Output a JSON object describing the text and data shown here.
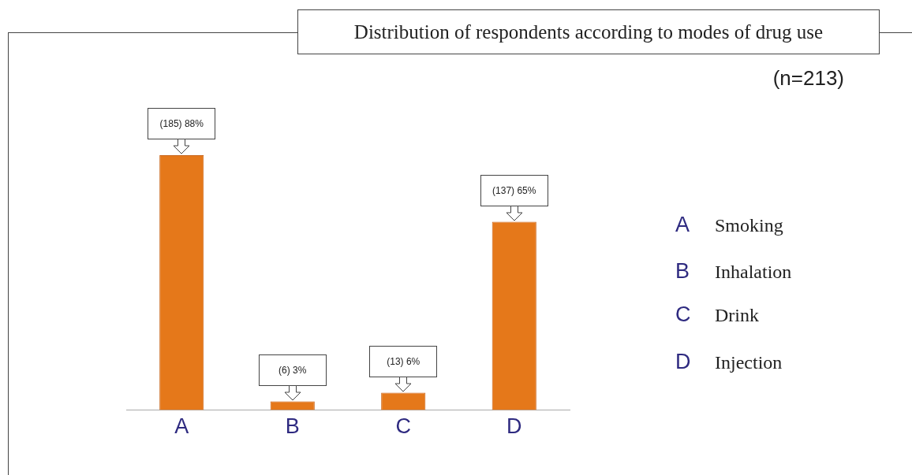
{
  "chart_data": {
    "type": "bar",
    "title": "Distribution of respondents according to modes of drug use",
    "subtitle": "(n=213)",
    "categories": [
      "A",
      "B",
      "C",
      "D"
    ],
    "values": [
      88,
      3,
      6,
      65
    ],
    "value_labels": [
      "(185) 88%",
      "(6) 3%",
      "(13) 6%",
      "(137) 65%"
    ],
    "color": "#e5781a",
    "annotations": [
      "A Smoking",
      "B Inhalation",
      "C Drink",
      "D Injection"
    ],
    "grid": false,
    "legend": false
  }
}
